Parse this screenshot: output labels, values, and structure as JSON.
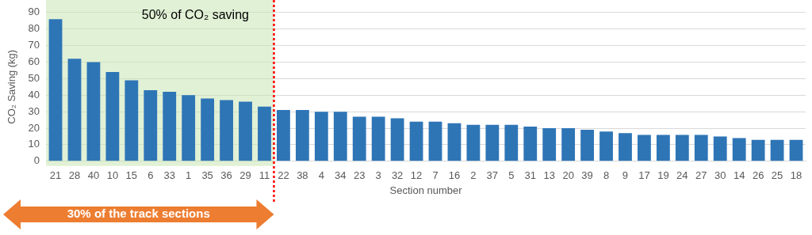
{
  "chart_data": {
    "type": "bar",
    "y_label": "CO₂ Saving (kg)",
    "x_label": "Section number",
    "categories": [
      "21",
      "28",
      "40",
      "10",
      "15",
      "6",
      "33",
      "1",
      "35",
      "36",
      "29",
      "11",
      "22",
      "38",
      "4",
      "34",
      "23",
      "3",
      "32",
      "12",
      "7",
      "16",
      "2",
      "37",
      "5",
      "31",
      "13",
      "20",
      "39",
      "8",
      "9",
      "17",
      "19",
      "24",
      "27",
      "30",
      "14",
      "26",
      "25",
      "18"
    ],
    "values": [
      86,
      62,
      60,
      54,
      49,
      43,
      42,
      40,
      38,
      37,
      36,
      33,
      31,
      31,
      30,
      30,
      27,
      27,
      26,
      24,
      24,
      23,
      22,
      22,
      22,
      21,
      20,
      20,
      19,
      18,
      17,
      16,
      16,
      16,
      16,
      15,
      14,
      13,
      13,
      13
    ],
    "color": "#2e75b6",
    "ylim": [
      0,
      90
    ],
    "yticks": [
      0,
      10,
      20,
      30,
      40,
      50,
      60,
      70,
      80,
      90
    ],
    "grid": true,
    "annotations": [
      {
        "text": "50% of CO₂ saving",
        "from": "21",
        "to": "11"
      },
      {
        "text": "30% of the track sections",
        "from": "21",
        "to": "11"
      }
    ]
  }
}
